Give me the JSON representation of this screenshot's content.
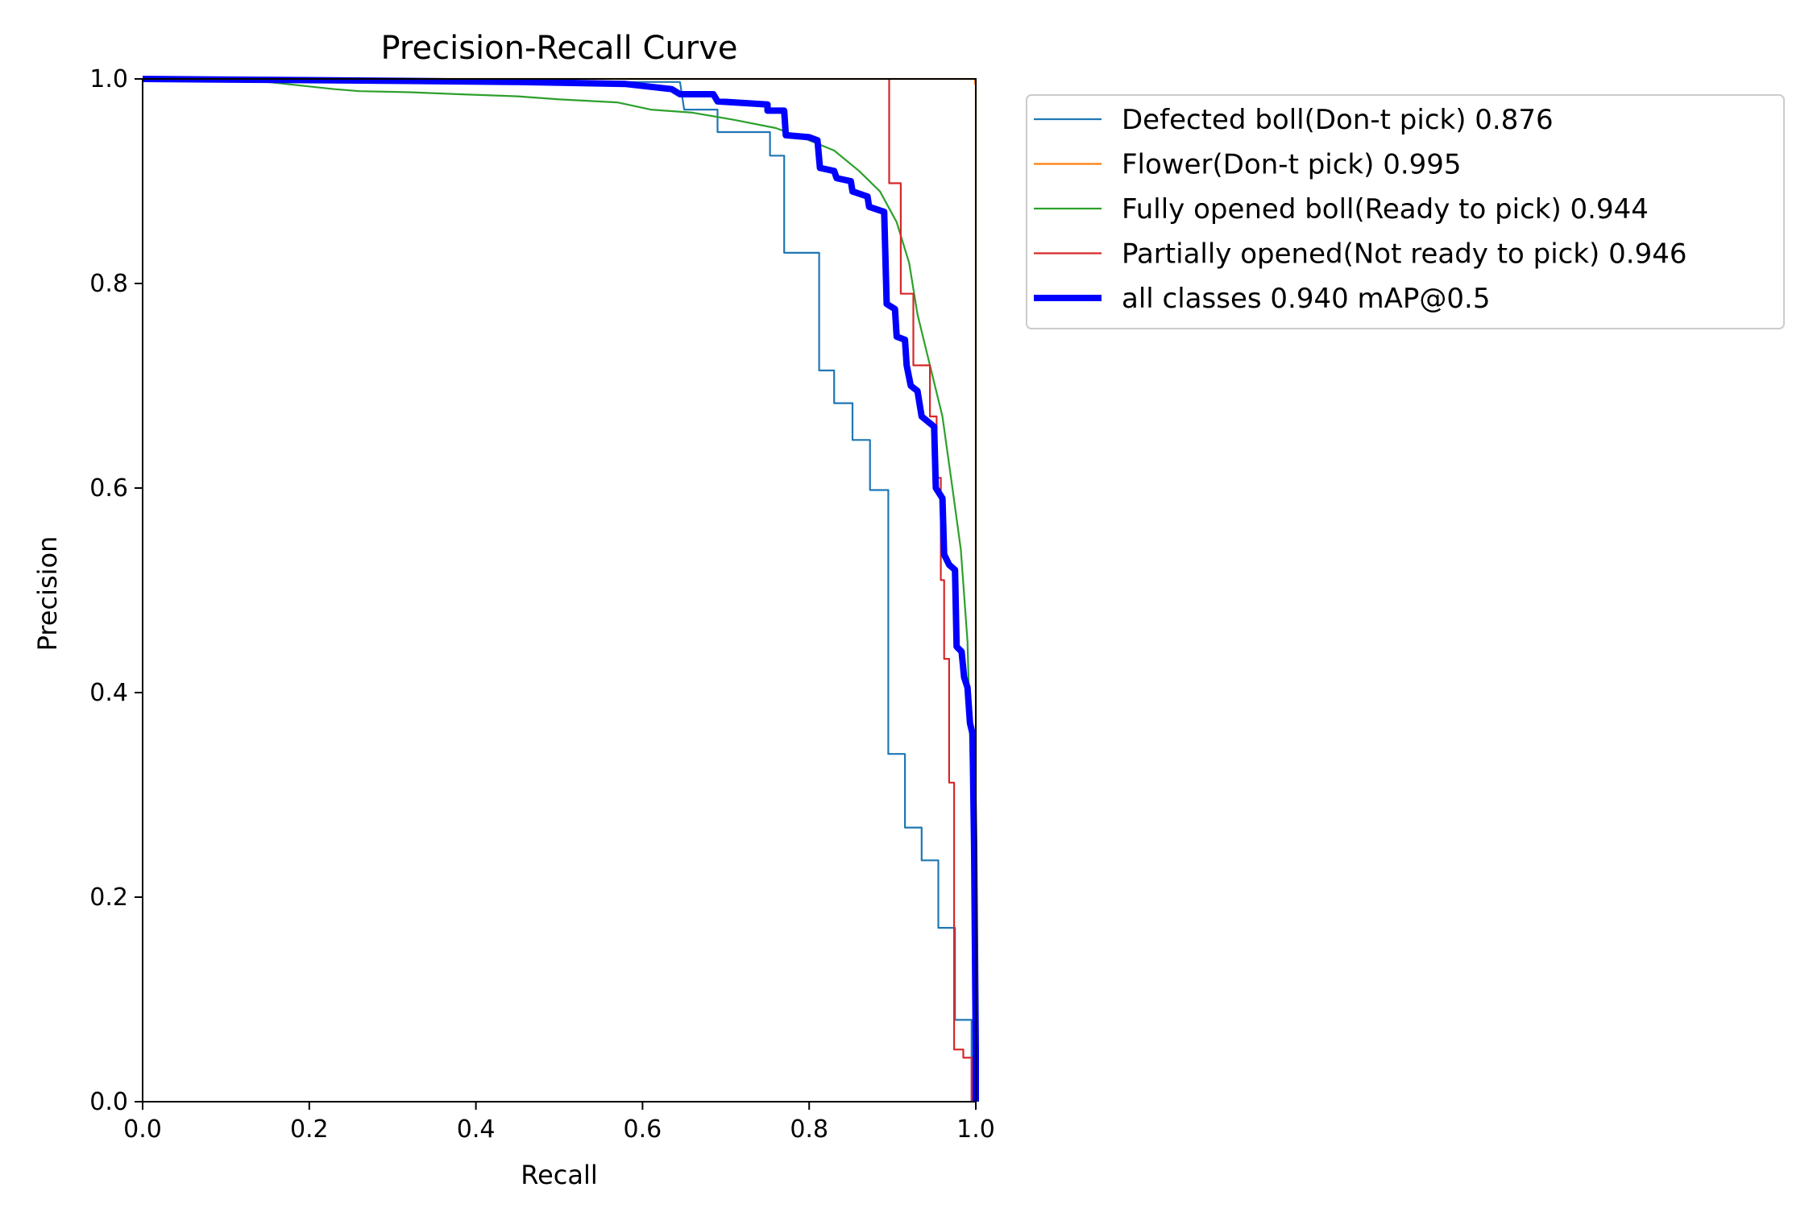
{
  "chart_data": {
    "type": "line",
    "title": "Precision-Recall Curve",
    "xlabel": "Recall",
    "ylabel": "Precision",
    "xlim": [
      0,
      1
    ],
    "ylim": [
      0,
      1
    ],
    "xticks": [
      "0.0",
      "0.2",
      "0.4",
      "0.6",
      "0.8",
      "1.0"
    ],
    "yticks": [
      "0.0",
      "0.2",
      "0.4",
      "0.6",
      "0.8",
      "1.0"
    ],
    "legend_position": "outside-top-right",
    "grid": false,
    "series": [
      {
        "name": "Defected boll(Don-t pick) 0.876",
        "color": "#1f77b4",
        "width": "thin",
        "step": true,
        "points": [
          [
            0,
            1.0
          ],
          [
            0.18,
            0.997
          ],
          [
            0.645,
            0.997
          ],
          [
            0.65,
            0.97
          ],
          [
            0.69,
            0.97
          ],
          [
            0.69,
            0.948
          ],
          [
            0.753,
            0.948
          ],
          [
            0.753,
            0.925
          ],
          [
            0.77,
            0.925
          ],
          [
            0.77,
            0.83
          ],
          [
            0.812,
            0.83
          ],
          [
            0.812,
            0.715
          ],
          [
            0.83,
            0.715
          ],
          [
            0.83,
            0.683
          ],
          [
            0.852,
            0.683
          ],
          [
            0.852,
            0.647
          ],
          [
            0.873,
            0.647
          ],
          [
            0.873,
            0.598
          ],
          [
            0.895,
            0.598
          ],
          [
            0.895,
            0.34
          ],
          [
            0.915,
            0.34
          ],
          [
            0.915,
            0.268
          ],
          [
            0.935,
            0.268
          ],
          [
            0.935,
            0.236
          ],
          [
            0.955,
            0.236
          ],
          [
            0.955,
            0.17
          ],
          [
            0.975,
            0.17
          ],
          [
            0.975,
            0.08
          ],
          [
            0.995,
            0.08
          ],
          [
            0.995,
            0.0
          ]
        ]
      },
      {
        "name": "Flower(Don-t pick) 0.995",
        "color": "#ff7f0e",
        "width": "thin",
        "step": true,
        "points": [
          [
            0,
            1.0
          ],
          [
            0.999,
            1.0
          ],
          [
            0.999,
            0.995
          ],
          [
            1.0,
            0.995
          ],
          [
            1.0,
            0.0
          ]
        ]
      },
      {
        "name": "Fully opened boll(Ready to pick) 0.944",
        "color": "#2ca02c",
        "width": "thin",
        "step": false,
        "points": [
          [
            0,
            1.0
          ],
          [
            0.15,
            0.997
          ],
          [
            0.23,
            0.99
          ],
          [
            0.26,
            0.988
          ],
          [
            0.32,
            0.987
          ],
          [
            0.38,
            0.985
          ],
          [
            0.45,
            0.983
          ],
          [
            0.5,
            0.98
          ],
          [
            0.57,
            0.977
          ],
          [
            0.61,
            0.97
          ],
          [
            0.66,
            0.967
          ],
          [
            0.71,
            0.96
          ],
          [
            0.76,
            0.952
          ],
          [
            0.8,
            0.94
          ],
          [
            0.83,
            0.93
          ],
          [
            0.86,
            0.91
          ],
          [
            0.885,
            0.89
          ],
          [
            0.905,
            0.86
          ],
          [
            0.92,
            0.82
          ],
          [
            0.93,
            0.77
          ],
          [
            0.945,
            0.72
          ],
          [
            0.96,
            0.67
          ],
          [
            0.972,
            0.6
          ],
          [
            0.982,
            0.54
          ],
          [
            0.99,
            0.45
          ],
          [
            0.995,
            0.3
          ],
          [
            0.998,
            0.15
          ],
          [
            1.0,
            0.0
          ]
        ]
      },
      {
        "name": "Partially opened(Not ready to pick) 0.946",
        "color": "#d62728",
        "width": "thin",
        "step": true,
        "points": [
          [
            0.896,
            1.0
          ],
          [
            0.896,
            0.898
          ],
          [
            0.91,
            0.898
          ],
          [
            0.91,
            0.79
          ],
          [
            0.925,
            0.79
          ],
          [
            0.925,
            0.72
          ],
          [
            0.945,
            0.72
          ],
          [
            0.945,
            0.67
          ],
          [
            0.953,
            0.67
          ],
          [
            0.953,
            0.61
          ],
          [
            0.958,
            0.61
          ],
          [
            0.958,
            0.51
          ],
          [
            0.962,
            0.51
          ],
          [
            0.962,
            0.433
          ],
          [
            0.968,
            0.433
          ],
          [
            0.968,
            0.312
          ],
          [
            0.974,
            0.312
          ],
          [
            0.974,
            0.051
          ],
          [
            0.985,
            0.051
          ],
          [
            0.985,
            0.043
          ],
          [
            0.995,
            0.043
          ],
          [
            0.995,
            0.0
          ]
        ]
      },
      {
        "name": "all classes 0.940 mAP@0.5",
        "color": "#0000ff",
        "width": "thick",
        "step": false,
        "points": [
          [
            0,
            1.0
          ],
          [
            0.32,
            0.998
          ],
          [
            0.45,
            0.997
          ],
          [
            0.58,
            0.995
          ],
          [
            0.635,
            0.99
          ],
          [
            0.645,
            0.985
          ],
          [
            0.685,
            0.985
          ],
          [
            0.69,
            0.978
          ],
          [
            0.75,
            0.975
          ],
          [
            0.75,
            0.969
          ],
          [
            0.77,
            0.969
          ],
          [
            0.772,
            0.945
          ],
          [
            0.8,
            0.943
          ],
          [
            0.81,
            0.94
          ],
          [
            0.813,
            0.913
          ],
          [
            0.83,
            0.91
          ],
          [
            0.833,
            0.903
          ],
          [
            0.85,
            0.9
          ],
          [
            0.852,
            0.89
          ],
          [
            0.87,
            0.885
          ],
          [
            0.872,
            0.875
          ],
          [
            0.89,
            0.87
          ],
          [
            0.893,
            0.78
          ],
          [
            0.903,
            0.775
          ],
          [
            0.905,
            0.748
          ],
          [
            0.915,
            0.745
          ],
          [
            0.917,
            0.72
          ],
          [
            0.922,
            0.7
          ],
          [
            0.93,
            0.695
          ],
          [
            0.935,
            0.67
          ],
          [
            0.95,
            0.66
          ],
          [
            0.952,
            0.6
          ],
          [
            0.96,
            0.59
          ],
          [
            0.962,
            0.535
          ],
          [
            0.968,
            0.525
          ],
          [
            0.975,
            0.52
          ],
          [
            0.977,
            0.445
          ],
          [
            0.983,
            0.44
          ],
          [
            0.986,
            0.415
          ],
          [
            0.99,
            0.405
          ],
          [
            0.993,
            0.37
          ],
          [
            0.996,
            0.36
          ],
          [
            0.998,
            0.25
          ],
          [
            1.0,
            0.05
          ],
          [
            1.0,
            0.0
          ]
        ]
      }
    ]
  }
}
